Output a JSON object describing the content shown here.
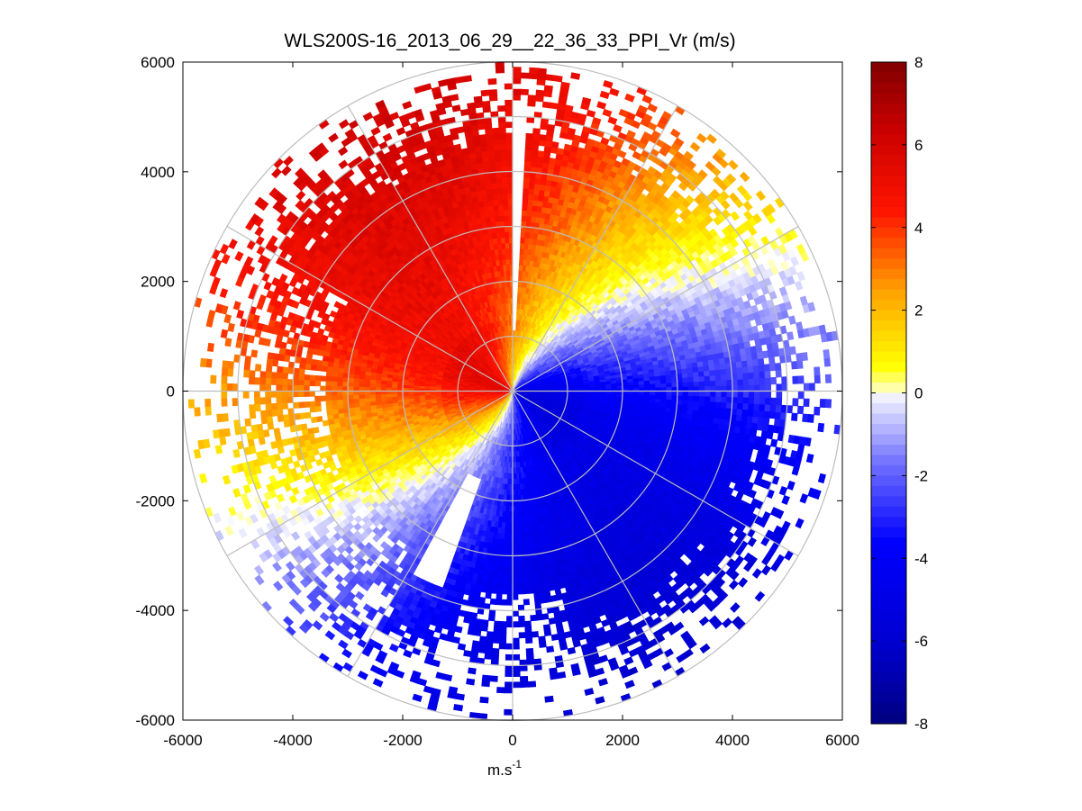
{
  "chart_data": {
    "type": "heatmap",
    "subtype": "polar-ppi",
    "title": "WLS200S-16_2013_06_29__22_36_33_PPI_Vr (m/s)",
    "xlabel": "m.s",
    "xlabel_superscript": "-1",
    "ylabel": "",
    "xlim": [
      -6000,
      6000
    ],
    "ylim": [
      -6000,
      6000
    ],
    "x_ticks": [
      {
        "value": -6000,
        "label": "-6000"
      },
      {
        "value": -4000,
        "label": "-4000"
      },
      {
        "value": -2000,
        "label": "-2000"
      },
      {
        "value": 0,
        "label": "0"
      },
      {
        "value": 2000,
        "label": "2000"
      },
      {
        "value": 4000,
        "label": "4000"
      },
      {
        "value": 6000,
        "label": "6000"
      }
    ],
    "y_ticks": [
      {
        "value": 6000,
        "label": "6000"
      },
      {
        "value": 4000,
        "label": "4000"
      },
      {
        "value": 2000,
        "label": "2000"
      },
      {
        "value": 0,
        "label": "0"
      },
      {
        "value": -2000,
        "label": "-2000"
      },
      {
        "value": -4000,
        "label": "-4000"
      },
      {
        "value": -6000,
        "label": "-6000"
      }
    ],
    "polar_grid": {
      "range_rings_m": [
        1000,
        2000,
        3000,
        4000,
        5000,
        6000
      ],
      "radial_step_deg": 30
    },
    "colorbar": {
      "min": -8,
      "max": 8,
      "ticks": [
        {
          "value": 8,
          "label": "8"
        },
        {
          "value": 6,
          "label": "6"
        },
        {
          "value": 4,
          "label": "4"
        },
        {
          "value": 2,
          "label": "2"
        },
        {
          "value": 0,
          "label": "0"
        },
        {
          "value": -2,
          "label": "-2"
        },
        {
          "value": -4,
          "label": "-4"
        },
        {
          "value": -6,
          "label": "-6"
        },
        {
          "value": -8,
          "label": "-8"
        }
      ]
    },
    "velocity_field": {
      "unit": "m/s",
      "max_range_m": 6000,
      "gate_spacing_m": 100,
      "beam_step_deg": 1.5,
      "notes": "Radial velocity; positive (red) in west/north-west sectors, negative (blue) in east/south sectors, spiral shear near center"
    }
  }
}
